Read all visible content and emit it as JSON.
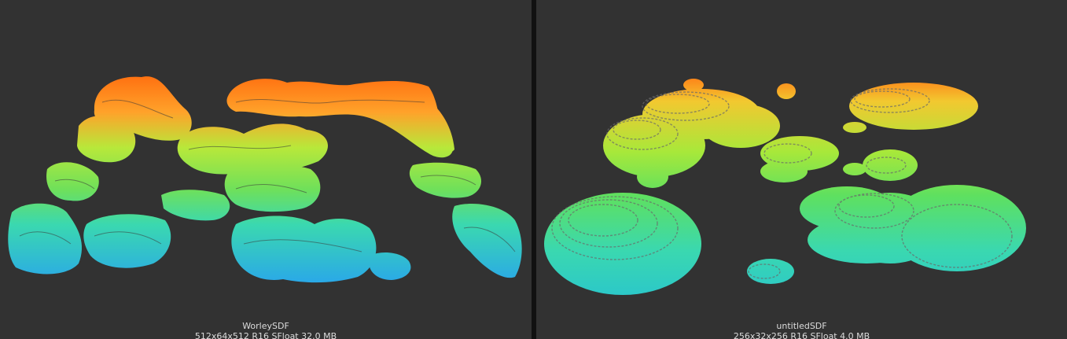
{
  "previews": [
    {
      "name": "WorleySDF",
      "info": "512x64x512 R16 SFloat 32.0 MB"
    },
    {
      "name": "untitledSDF",
      "info": "256x32x256 R16 SFloat 4.0 MB"
    }
  ],
  "colors": {
    "background": "#323232",
    "divider": "#111111",
    "caption_text": "#dcdcdc",
    "gradient": [
      "#ff6f10",
      "#ffb020",
      "#b8e83a",
      "#5ee060",
      "#3ad8b0",
      "#2ab8e0"
    ]
  }
}
